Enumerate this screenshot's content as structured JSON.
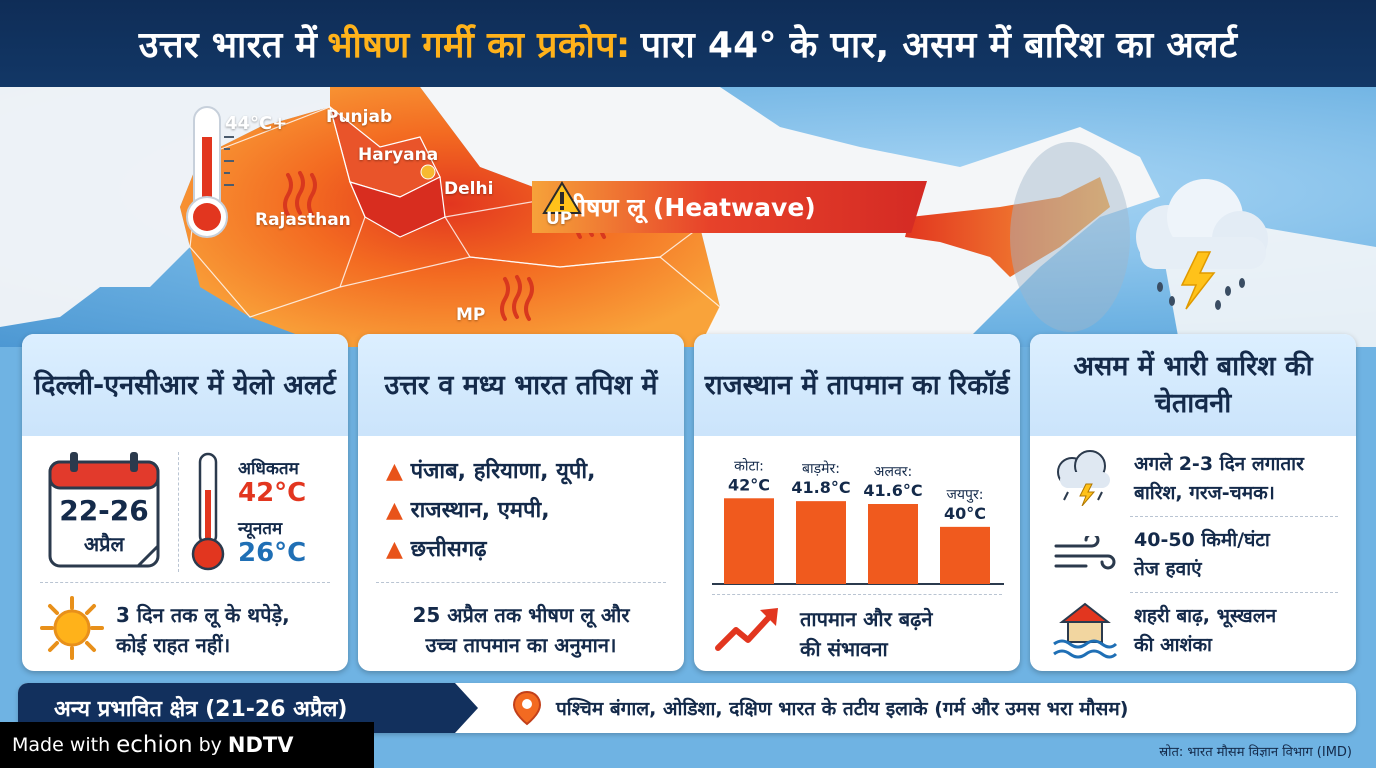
{
  "title": {
    "part1": "उत्तर भारत में",
    "highlight": "भीषण गर्मी का प्रकोप:",
    "part2": "पारा 44° के पार, असम में बारिश का अलर्ट"
  },
  "map": {
    "banner": "भीषण लू (Heatwave)",
    "thermo_label": "44°C+",
    "states": [
      "Punjab",
      "Haryana",
      "Delhi",
      "Rajasthan",
      "UP",
      "MP"
    ],
    "colors": {
      "heat_dark": "#e2361f",
      "heat_mid": "#f36a21",
      "heat_light": "#f9a33a",
      "land": "#f4f6f8",
      "sea": "#6fb3e3"
    }
  },
  "cards": [
    {
      "title": "दिल्ली-एनसीआर में येलो अलर्ट",
      "date_range": "22-26",
      "month": "अप्रैल",
      "max_label": "अधिकतम",
      "max_value": "42°C",
      "min_label": "न्यूनतम",
      "min_value": "26°C",
      "note_line1": "3 दिन तक लू के थपेड़े,",
      "note_line2": "कोई राहत नहीं।"
    },
    {
      "title": "उत्तर व मध्य भारत तपिश में",
      "items": [
        "पंजाब, हरियाणा, यूपी,",
        "राजस्थान, एमपी,",
        "छत्तीसगढ़"
      ],
      "note_line1": "25 अप्रैल तक भीषण लू और",
      "note_line2": "उच्च तापमान का अनुमान।"
    },
    {
      "title": "राजस्थान में तापमान का रिकॉर्ड",
      "note_line1": "तापमान और बढ़ने",
      "note_line2": "की संभावना"
    },
    {
      "title": "असम में भारी बारिश की चेतावनी",
      "items": [
        {
          "line1": "अगले 2-3 दिन लगातार",
          "line2": "बारिश, गरज-चमक।"
        },
        {
          "line1": "40-50 किमी/घंटा",
          "line2": "तेज हवाएं"
        },
        {
          "line1": "शहरी बाढ़, भूस्खलन",
          "line2": "की आशंका"
        }
      ]
    }
  ],
  "chart_data": {
    "type": "bar",
    "title": "",
    "categories": [
      "कोटा:",
      "बाड़मेर:",
      "अलवर:",
      "जयपुर:"
    ],
    "values": [
      42,
      41.8,
      41.6,
      40
    ],
    "value_labels": [
      "42°C",
      "41.8°C",
      "41.6°C",
      "40°C"
    ],
    "xlabel": "",
    "ylabel": "",
    "ylim": [
      36,
      43
    ],
    "grid": false,
    "bar_color": "#f05a1e"
  },
  "bottom": {
    "tag": "अन्य प्रभावित क्षेत्र (21-26 अप्रैल)",
    "places": "पश्चिम बंगाल, ओडिशा, दक्षिण भारत के तटीय इलाके (गर्म और उमस भरा मौसम)"
  },
  "source": "स्रोत: भारत मौसम विज्ञान विभाग (IMD)",
  "watermark": {
    "prefix": "Made with",
    "brand": "echion",
    "by": "by",
    "org": "NDTV"
  }
}
